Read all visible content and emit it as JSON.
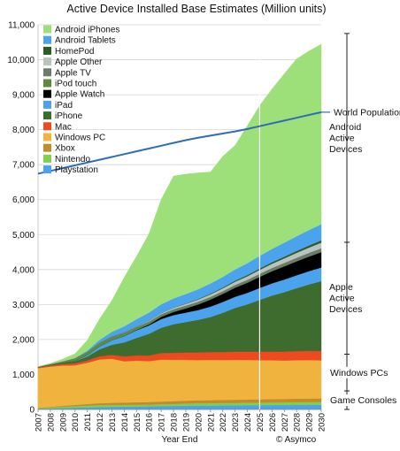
{
  "chart_data": {
    "type": "area",
    "title": "Active Device Installed Base Estimates (Million units)",
    "xlabel": "Year End",
    "ylabel": "",
    "credit": "© Asymco",
    "ylim": [
      0,
      11000
    ],
    "yticks": [
      0,
      1000,
      2000,
      3000,
      4000,
      5000,
      6000,
      7000,
      8000,
      9000,
      10000,
      11000
    ],
    "ytick_labels": [
      "0",
      "1,000",
      "2,000",
      "3,000",
      "4,000",
      "5,000",
      "6,000",
      "7,000",
      "8,000",
      "9,000",
      "10,000",
      "11,000"
    ],
    "categories": [
      "2007",
      "2008",
      "2009",
      "2010",
      "2011",
      "2012",
      "2013",
      "2014",
      "2015",
      "2016",
      "2017",
      "2018",
      "2019",
      "2020",
      "2021",
      "2022",
      "2023",
      "2024",
      "2025",
      "2026",
      "2027",
      "2028",
      "2029",
      "2030"
    ],
    "grid": true,
    "legend_placement": "top-left",
    "highlight_year": "2025",
    "series": [
      {
        "name": "Playstation",
        "color": "#4aa3ec",
        "values": [
          20,
          30,
          40,
          50,
          60,
          70,
          75,
          80,
          85,
          90,
          95,
          100,
          105,
          110,
          112,
          115,
          117,
          120,
          122,
          125,
          127,
          130,
          132,
          135
        ]
      },
      {
        "name": "Nintendo",
        "color": "#7fd04b",
        "values": [
          20,
          30,
          40,
          45,
          50,
          55,
          55,
          52,
          50,
          50,
          55,
          60,
          65,
          70,
          70,
          72,
          72,
          75,
          75,
          77,
          77,
          80,
          80,
          80
        ]
      },
      {
        "name": "Xbox",
        "color": "#c48a2c",
        "values": [
          10,
          15,
          25,
          35,
          45,
          55,
          60,
          65,
          70,
          72,
          75,
          78,
          80,
          82,
          84,
          86,
          88,
          90,
          92,
          94,
          96,
          98,
          100,
          100
        ]
      },
      {
        "name": "Windows PC",
        "color": "#f0b43e",
        "values": [
          1130,
          1150,
          1150,
          1130,
          1180,
          1250,
          1260,
          1180,
          1190,
          1170,
          1200,
          1180,
          1170,
          1150,
          1150,
          1140,
          1140,
          1130,
          1120,
          1110,
          1100,
          1100,
          1100,
          1090
        ]
      },
      {
        "name": "Mac",
        "color": "#ee4a1f",
        "values": [
          25,
          35,
          45,
          60,
          70,
          90,
          110,
          140,
          150,
          160,
          190,
          200,
          210,
          220,
          225,
          230,
          235,
          240,
          245,
          250,
          255,
          260,
          262,
          265
        ]
      },
      {
        "name": "iPhone",
        "color": "#3e6b2e",
        "values": [
          5,
          15,
          30,
          60,
          110,
          200,
          290,
          400,
          500,
          620,
          720,
          820,
          870,
          930,
          1000,
          1120,
          1250,
          1350,
          1480,
          1600,
          1700,
          1800,
          1900,
          2000
        ]
      },
      {
        "name": "iPad",
        "color": "#4aa3ec",
        "values": [
          0,
          0,
          0,
          10,
          40,
          80,
          130,
          180,
          220,
          240,
          250,
          260,
          270,
          280,
          300,
          310,
          320,
          330,
          340,
          350,
          360,
          370,
          380,
          390
        ]
      },
      {
        "name": "Apple Watch",
        "color": "#000000",
        "values": [
          0,
          0,
          0,
          0,
          0,
          0,
          0,
          0,
          10,
          30,
          60,
          90,
          120,
          160,
          200,
          230,
          260,
          290,
          320,
          350,
          380,
          400,
          420,
          440
        ]
      },
      {
        "name": "iPod touch",
        "color": "#5c8b3c",
        "values": [
          10,
          25,
          45,
          65,
          80,
          90,
          85,
          75,
          60,
          45,
          35,
          30,
          25,
          20,
          15,
          10,
          5,
          3,
          2,
          0,
          0,
          0,
          0,
          0
        ]
      },
      {
        "name": "Apple TV",
        "color": "#6b7b6b",
        "values": [
          0,
          0,
          5,
          10,
          15,
          20,
          25,
          30,
          35,
          40,
          45,
          50,
          55,
          60,
          65,
          70,
          75,
          80,
          85,
          90,
          95,
          100,
          105,
          110
        ]
      },
      {
        "name": "Apple Other",
        "color": "#b9c4bd",
        "values": [
          0,
          0,
          0,
          0,
          0,
          0,
          0,
          5,
          10,
          20,
          30,
          40,
          50,
          60,
          70,
          80,
          90,
          100,
          110,
          120,
          130,
          140,
          150,
          160
        ]
      },
      {
        "name": "HomePod",
        "color": "#2f5a24",
        "values": [
          0,
          0,
          0,
          0,
          0,
          0,
          0,
          0,
          0,
          0,
          0,
          5,
          10,
          15,
          20,
          25,
          30,
          35,
          40,
          45,
          50,
          55,
          60,
          65
        ]
      },
      {
        "name": "Android Tablets",
        "color": "#4aa3ec",
        "values": [
          0,
          0,
          0,
          5,
          30,
          80,
          130,
          170,
          200,
          230,
          250,
          260,
          270,
          280,
          290,
          300,
          320,
          340,
          360,
          380,
          400,
          420,
          440,
          460
        ]
      },
      {
        "name": "Android iPhones",
        "color": "#9de07a",
        "values": [
          0,
          20,
          60,
          120,
          300,
          600,
          900,
          1400,
          1800,
          2250,
          3000,
          3500,
          3430,
          3330,
          3190,
          3450,
          3550,
          3930,
          4300,
          4570,
          4830,
          5070,
          5120,
          5150
        ]
      }
    ],
    "overlay_line": {
      "name": "World Population",
      "color": "#2f6db5",
      "values": [
        6740,
        6820,
        6900,
        6980,
        7060,
        7140,
        7220,
        7300,
        7380,
        7460,
        7540,
        7620,
        7700,
        7770,
        7830,
        7890,
        7950,
        8020,
        8100,
        8180,
        8260,
        8340,
        8420,
        8500
      ]
    },
    "legend": [
      "Android iPhones",
      "Android Tablets",
      "HomePod",
      "Apple Other",
      "Apple TV",
      "iPod touch",
      "Apple Watch",
      "iPad",
      "iPhone",
      "Mac",
      "Windows PC",
      "Xbox",
      "Nintendo",
      "Playstation"
    ],
    "brackets": [
      {
        "label_lines": [
          "Android",
          "Active",
          "Devices"
        ],
        "from": 4780,
        "to": 10750
      },
      {
        "label_lines": [
          "Apple",
          "Active",
          "Devices"
        ],
        "from": 1580,
        "to": 4780
      },
      {
        "label_lines": [
          "Windows PCs"
        ],
        "from": 530,
        "to": 1580
      },
      {
        "label_lines": [
          "Game Consoles"
        ],
        "from": 0,
        "to": 530
      }
    ],
    "population_label": "World Population"
  }
}
